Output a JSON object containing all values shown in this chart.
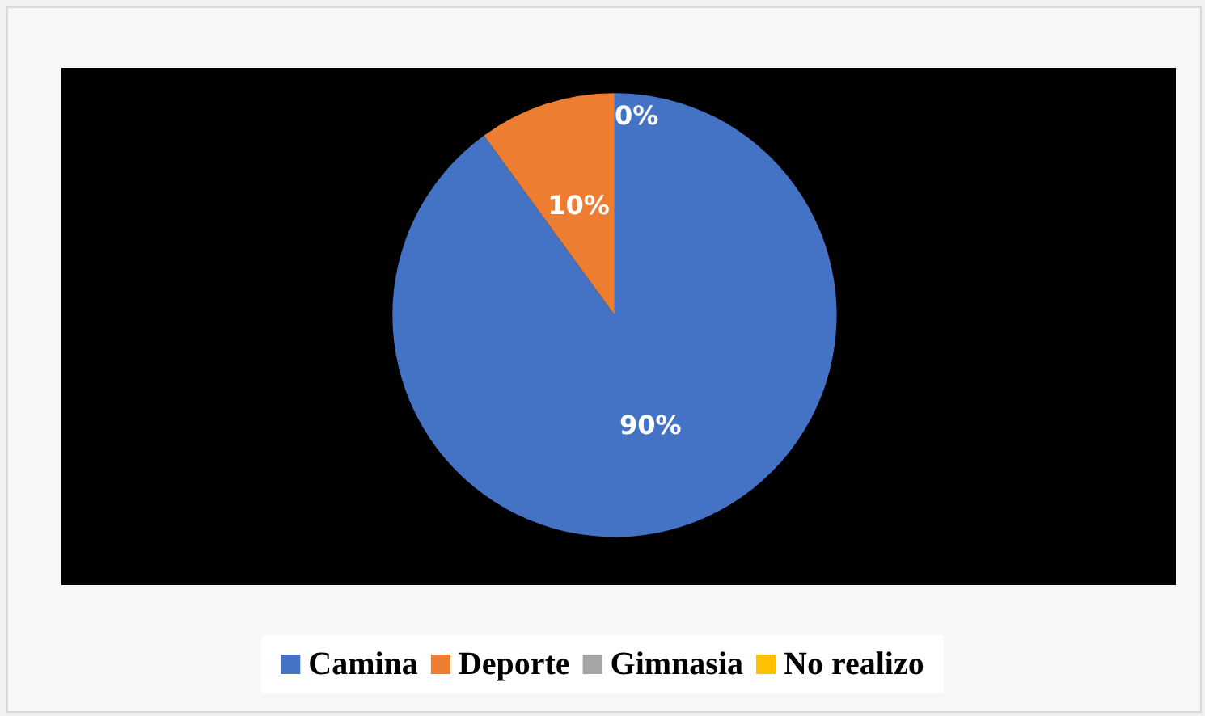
{
  "chart_data": {
    "type": "pie",
    "categories": [
      "Camina",
      "Deporte",
      "Gimnasia",
      "No realizo"
    ],
    "values": [
      90,
      10,
      0,
      0
    ],
    "colors": [
      "#4472c4",
      "#ed7d31",
      "#a5a5a5",
      "#ffc000"
    ],
    "value_labels": [
      "90%",
      "10%",
      "0%",
      null
    ],
    "legend": "bottom"
  }
}
